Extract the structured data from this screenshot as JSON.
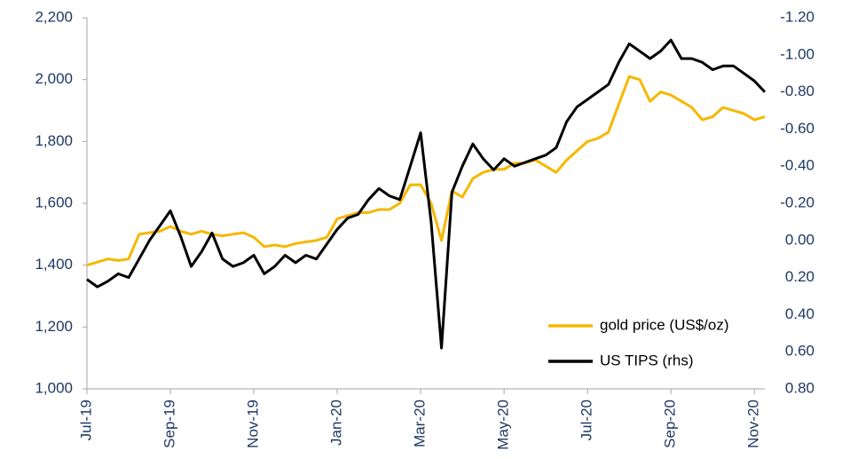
{
  "chart_data": {
    "type": "line",
    "categories": [
      "Jul-19",
      null,
      null,
      null,
      null,
      null,
      null,
      null,
      "Sep-19",
      null,
      null,
      null,
      null,
      null,
      null,
      null,
      "Nov-19",
      null,
      null,
      null,
      null,
      null,
      null,
      null,
      "Jan-20",
      null,
      null,
      null,
      null,
      null,
      null,
      null,
      "Mar-20",
      null,
      null,
      null,
      null,
      null,
      null,
      null,
      "May-20",
      null,
      null,
      null,
      null,
      null,
      null,
      null,
      "Jul-20",
      null,
      null,
      null,
      null,
      null,
      null,
      null,
      "Sep-20",
      null,
      null,
      null,
      null,
      null,
      null,
      null,
      "Nov-20",
      null
    ],
    "series": [
      {
        "name": "gold price (US$/oz)",
        "color": "#f5b800",
        "values": [
          1400,
          1410,
          1420,
          1415,
          1420,
          1500,
          1505,
          1510,
          1525,
          1510,
          1500,
          1510,
          1500,
          1495,
          1500,
          1505,
          1490,
          1460,
          1465,
          1460,
          1470,
          1475,
          1480,
          1490,
          1550,
          1560,
          1570,
          1570,
          1580,
          1580,
          1600,
          1660,
          1660,
          1600,
          1480,
          1640,
          1620,
          1680,
          1700,
          1710,
          1710,
          1730,
          1730,
          1740,
          1720,
          1700,
          1740,
          1770,
          1800,
          1810,
          1830,
          1920,
          2010,
          2000,
          1930,
          1960,
          1950,
          1930,
          1910,
          1870,
          1880,
          1910,
          1900,
          1890,
          1870,
          1880
        ]
      },
      {
        "name": "US TIPS (rhs)",
        "color": "#000000",
        "axis": "y2",
        "values": [
          0.21,
          0.25,
          0.22,
          0.18,
          0.2,
          0.1,
          0,
          -0.08,
          -0.16,
          -0.02,
          0.14,
          0.06,
          -0.04,
          0.1,
          0.14,
          0.12,
          0.08,
          0.18,
          0.14,
          0.08,
          0.12,
          0.08,
          0.1,
          0.02,
          -0.06,
          -0.12,
          -0.14,
          -0.22,
          -0.28,
          -0.24,
          -0.22,
          -0.4,
          -0.58,
          -0.1,
          0.58,
          -0.26,
          -0.4,
          -0.52,
          -0.44,
          -0.38,
          -0.44,
          -0.4,
          -0.42,
          -0.44,
          -0.46,
          -0.5,
          -0.64,
          -0.72,
          -0.76,
          -0.8,
          -0.84,
          -0.96,
          -1.06,
          -1.02,
          -0.98,
          -1.02,
          -1.08,
          -0.98,
          -0.98,
          -0.96,
          -0.92,
          -0.94,
          -0.94,
          -0.9,
          -0.86,
          -0.8
        ]
      }
    ],
    "ylim": [
      1000,
      2200
    ],
    "yticks": [
      {
        "value": 1000,
        "label": "1,000"
      },
      {
        "value": 1200,
        "label": "1,200"
      },
      {
        "value": 1400,
        "label": "1,400"
      },
      {
        "value": 1600,
        "label": "1,600"
      },
      {
        "value": 1800,
        "label": "1,800"
      },
      {
        "value": 2000,
        "label": "2,000"
      },
      {
        "value": 2200,
        "label": "2,200"
      }
    ],
    "y2lim": [
      0.8,
      -1.2
    ],
    "y2ticks": [
      {
        "value": 0.8,
        "label": "0.80"
      },
      {
        "value": 0.6,
        "label": "0.60"
      },
      {
        "value": 0.4,
        "label": "0.40"
      },
      {
        "value": 0.2,
        "label": "0.20"
      },
      {
        "value": 0,
        "label": "0.00"
      },
      {
        "value": -0.2,
        "label": "-0.20"
      },
      {
        "value": -0.4,
        "label": "-0.40"
      },
      {
        "value": -0.6,
        "label": "-0.60"
      },
      {
        "value": -0.8,
        "label": "-0.80"
      },
      {
        "value": -1.0,
        "label": "-1.00"
      },
      {
        "value": -1.2,
        "label": "-1.20"
      }
    ],
    "grid": false,
    "legend": "bottom-right"
  }
}
